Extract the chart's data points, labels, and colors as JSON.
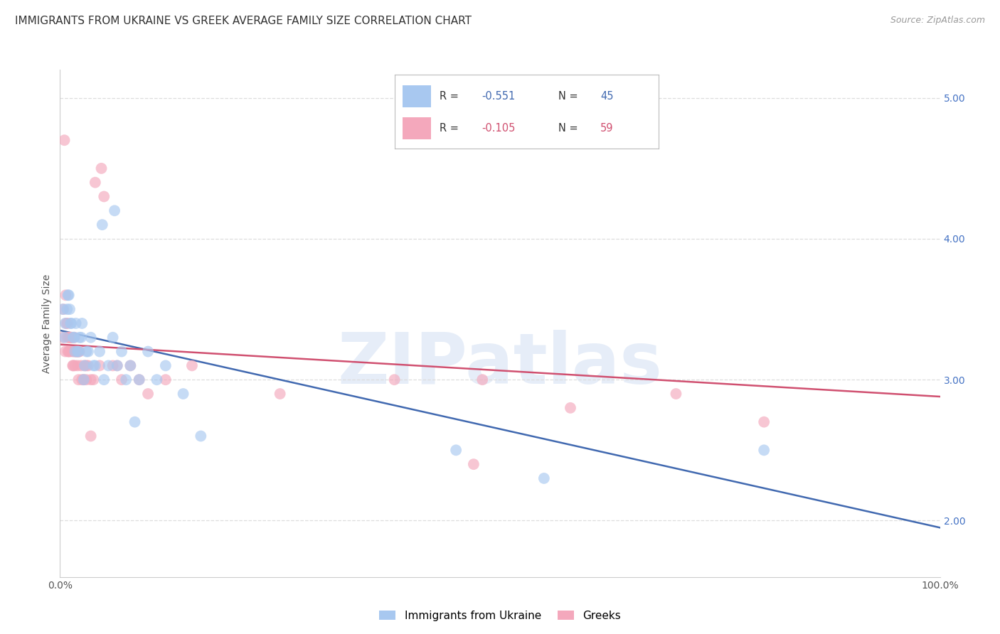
{
  "title": "IMMIGRANTS FROM UKRAINE VS GREEK AVERAGE FAMILY SIZE CORRELATION CHART",
  "source": "Source: ZipAtlas.com",
  "ylabel": "Average Family Size",
  "yticks": [
    2.0,
    3.0,
    4.0,
    5.0
  ],
  "ukraine_R": -0.551,
  "ukraine_N": 45,
  "greeks_R": -0.105,
  "greeks_N": 59,
  "ukraine_color": "#a8c8f0",
  "greeks_color": "#f4a8bc",
  "ukraine_line_color": "#4169b0",
  "greeks_line_color": "#d05070",
  "watermark": "ZIPatlas",
  "ukraine_x": [
    0.5,
    0.8,
    1.0,
    1.2,
    1.5,
    1.7,
    2.0,
    2.2,
    2.5,
    2.8,
    3.0,
    3.5,
    4.0,
    4.5,
    5.0,
    5.5,
    6.0,
    6.5,
    7.0,
    7.5,
    8.0,
    9.0,
    10.0,
    11.0,
    12.0,
    14.0,
    0.3,
    0.6,
    0.9,
    1.1,
    1.3,
    1.6,
    1.8,
    2.1,
    2.4,
    2.7,
    3.2,
    3.8,
    4.8,
    6.2,
    8.5,
    16.0,
    45.0,
    80.0,
    55.0
  ],
  "ukraine_y": [
    3.3,
    3.5,
    3.6,
    3.4,
    3.3,
    3.2,
    3.2,
    3.3,
    3.4,
    3.1,
    3.2,
    3.3,
    3.1,
    3.2,
    3.0,
    3.1,
    3.3,
    3.1,
    3.2,
    3.0,
    3.1,
    3.0,
    3.2,
    3.0,
    3.1,
    2.9,
    3.5,
    3.4,
    3.6,
    3.5,
    3.4,
    3.3,
    3.4,
    3.2,
    3.3,
    3.0,
    3.2,
    3.1,
    4.1,
    4.2,
    2.7,
    2.6,
    2.5,
    2.5,
    2.3
  ],
  "greeks_x": [
    0.3,
    0.5,
    0.6,
    0.7,
    0.8,
    0.9,
    1.0,
    1.1,
    1.2,
    1.3,
    1.4,
    1.5,
    1.6,
    1.7,
    1.8,
    1.9,
    2.0,
    2.1,
    2.2,
    2.5,
    2.8,
    3.0,
    3.2,
    3.5,
    4.0,
    5.0,
    6.0,
    7.0,
    8.0,
    9.0,
    10.0,
    12.0,
    0.4,
    0.65,
    0.85,
    1.05,
    1.25,
    1.45,
    1.65,
    1.85,
    2.15,
    2.4,
    2.7,
    3.8,
    4.5,
    6.5,
    15.0,
    25.0,
    38.0,
    48.0,
    58.0,
    70.0,
    80.0,
    1.0,
    2.0,
    3.0,
    3.5,
    4.7,
    47.0
  ],
  "greeks_y": [
    3.3,
    4.7,
    3.2,
    3.4,
    3.3,
    3.2,
    3.3,
    3.2,
    3.3,
    3.3,
    3.2,
    3.1,
    3.2,
    3.1,
    3.2,
    3.2,
    3.1,
    3.0,
    3.2,
    3.0,
    3.1,
    3.0,
    3.1,
    3.0,
    4.4,
    4.3,
    3.1,
    3.0,
    3.1,
    3.0,
    2.9,
    3.0,
    3.5,
    3.6,
    3.4,
    3.3,
    3.3,
    3.1,
    3.3,
    3.2,
    3.2,
    3.1,
    3.0,
    3.0,
    3.1,
    3.1,
    3.1,
    2.9,
    3.0,
    3.0,
    2.8,
    2.9,
    2.7,
    3.2,
    3.2,
    3.1,
    2.6,
    4.5,
    2.4
  ],
  "xmin": 0,
  "xmax": 100,
  "ymin": 1.6,
  "ymax": 5.2,
  "background_color": "#ffffff",
  "grid_color": "#dddddd",
  "title_fontsize": 11,
  "axis_label_fontsize": 10,
  "tick_fontsize": 10,
  "legend_fontsize": 11,
  "ukraine_line_x0": 0,
  "ukraine_line_y0": 3.35,
  "ukraine_line_x1": 100,
  "ukraine_line_y1": 1.95,
  "greeks_line_x0": 0,
  "greeks_line_y0": 3.25,
  "greeks_line_x1": 100,
  "greeks_line_y1": 2.88
}
